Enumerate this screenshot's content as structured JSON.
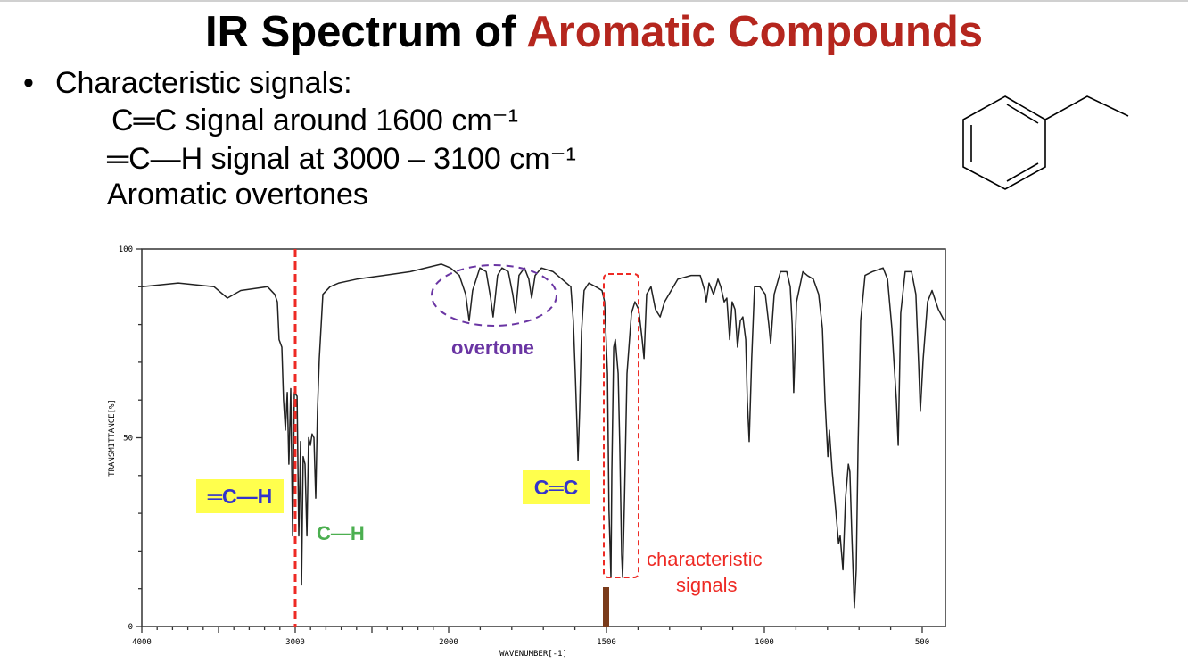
{
  "title": {
    "plain": "IR Spectrum of ",
    "accent": "Aromatic Compounds",
    "accent_color": "#b5261e"
  },
  "bullets": {
    "marker": "•",
    "heading": "Characteristic signals:",
    "lines": [
      "C═C signal around 1600 cm⁻¹",
      "═C—H signal at 3000 – 3100 cm⁻¹",
      "Aromatic overtones"
    ]
  },
  "molecule": {
    "icon": "ethylbenzene-structure"
  },
  "annotations": {
    "ch_aromatic": "═C—H",
    "ch_alkyl": "C—H",
    "cc": "C═C",
    "overtone": "overtone",
    "characteristic": [
      "characteristic",
      "signals"
    ],
    "colors": {
      "highlight": "#ffff4d",
      "blue_text": "#3333cc",
      "green": "#4caf50",
      "purple": "#6a35a3",
      "red": "#ee2a24",
      "brown": "#7a3b1a"
    }
  },
  "chart_data": {
    "type": "line",
    "xlabel": "WAVENUMBER[-1]",
    "ylabel": "TRANSMITTANCE[%]",
    "xlim": [
      4000,
      430
    ],
    "x_scale_break": 2000,
    "ylim": [
      0,
      100
    ],
    "x_ticks": [
      "4000",
      "3000",
      "2000",
      "1500",
      "1000",
      "500"
    ],
    "y_ticks": [
      "0",
      "50",
      "100"
    ],
    "grid": false,
    "marker_lines": [
      3000
    ],
    "marker_bar": 1500,
    "points": [
      [
        4000,
        90
      ],
      [
        3762,
        91
      ],
      [
        3529,
        90
      ],
      [
        3442,
        87
      ],
      [
        3355,
        89
      ],
      [
        3180,
        90
      ],
      [
        3134,
        88
      ],
      [
        3116,
        86
      ],
      [
        3105,
        76
      ],
      [
        3087,
        74
      ],
      [
        3076,
        60
      ],
      [
        3064,
        52
      ],
      [
        3052,
        62
      ],
      [
        3041,
        43
      ],
      [
        3029,
        63
      ],
      [
        3017,
        24
      ],
      [
        3006,
        62
      ],
      [
        2988,
        61
      ],
      [
        2977,
        24
      ],
      [
        2965,
        49
      ],
      [
        2959,
        11
      ],
      [
        2948,
        45
      ],
      [
        2936,
        43
      ],
      [
        2924,
        24
      ],
      [
        2913,
        50
      ],
      [
        2901,
        48
      ],
      [
        2890,
        51
      ],
      [
        2878,
        50
      ],
      [
        2866,
        34
      ],
      [
        2855,
        57
      ],
      [
        2843,
        71
      ],
      [
        2820,
        88
      ],
      [
        2773,
        90
      ],
      [
        2715,
        91
      ],
      [
        2599,
        92
      ],
      [
        2424,
        93
      ],
      [
        2250,
        94
      ],
      [
        2047,
        96
      ],
      [
        1994,
        95
      ],
      [
        1966,
        93
      ],
      [
        1946,
        88
      ],
      [
        1935,
        81
      ],
      [
        1924,
        89
      ],
      [
        1901,
        95
      ],
      [
        1881,
        94
      ],
      [
        1867,
        87
      ],
      [
        1859,
        82
      ],
      [
        1845,
        93
      ],
      [
        1831,
        95
      ],
      [
        1811,
        94
      ],
      [
        1797,
        88
      ],
      [
        1788,
        83
      ],
      [
        1777,
        93
      ],
      [
        1760,
        95
      ],
      [
        1746,
        92
      ],
      [
        1737,
        87
      ],
      [
        1726,
        93
      ],
      [
        1706,
        95
      ],
      [
        1669,
        94
      ],
      [
        1641,
        92
      ],
      [
        1613,
        90
      ],
      [
        1605,
        81
      ],
      [
        1599,
        67
      ],
      [
        1593,
        52
      ],
      [
        1590,
        44
      ],
      [
        1585,
        57
      ],
      [
        1579,
        78
      ],
      [
        1571,
        89
      ],
      [
        1556,
        91
      ],
      [
        1534,
        90
      ],
      [
        1514,
        89
      ],
      [
        1506,
        86
      ],
      [
        1497,
        67
      ],
      [
        1492,
        31
      ],
      [
        1486,
        13
      ],
      [
        1483,
        41
      ],
      [
        1477,
        74
      ],
      [
        1472,
        76
      ],
      [
        1463,
        67
      ],
      [
        1458,
        48
      ],
      [
        1452,
        19
      ],
      [
        1449,
        13
      ],
      [
        1443,
        34
      ],
      [
        1435,
        67
      ],
      [
        1421,
        83
      ],
      [
        1410,
        86
      ],
      [
        1398,
        84
      ],
      [
        1387,
        76
      ],
      [
        1381,
        71
      ],
      [
        1373,
        88
      ],
      [
        1359,
        90
      ],
      [
        1345,
        84
      ],
      [
        1330,
        82
      ],
      [
        1316,
        86
      ],
      [
        1274,
        92
      ],
      [
        1232,
        93
      ],
      [
        1203,
        93
      ],
      [
        1189,
        89
      ],
      [
        1184,
        86
      ],
      [
        1175,
        91
      ],
      [
        1161,
        88
      ],
      [
        1147,
        92
      ],
      [
        1138,
        90
      ],
      [
        1127,
        86
      ],
      [
        1119,
        87
      ],
      [
        1110,
        76
      ],
      [
        1102,
        86
      ],
      [
        1093,
        84
      ],
      [
        1085,
        74
      ],
      [
        1076,
        81
      ],
      [
        1068,
        82
      ],
      [
        1059,
        76
      ],
      [
        1054,
        60
      ],
      [
        1048,
        49
      ],
      [
        1040,
        71
      ],
      [
        1031,
        90
      ],
      [
        1014,
        90
      ],
      [
        997,
        88
      ],
      [
        986,
        80
      ],
      [
        980,
        75
      ],
      [
        969,
        88
      ],
      [
        949,
        94
      ],
      [
        929,
        94
      ],
      [
        918,
        90
      ],
      [
        912,
        80
      ],
      [
        907,
        62
      ],
      [
        898,
        86
      ],
      [
        878,
        94
      ],
      [
        864,
        93
      ],
      [
        845,
        92
      ],
      [
        828,
        88
      ],
      [
        816,
        79
      ],
      [
        808,
        60
      ],
      [
        799,
        45
      ],
      [
        794,
        52
      ],
      [
        785,
        41
      ],
      [
        774,
        31
      ],
      [
        765,
        22
      ],
      [
        760,
        24
      ],
      [
        751,
        15
      ],
      [
        743,
        34
      ],
      [
        734,
        43
      ],
      [
        729,
        41
      ],
      [
        723,
        24
      ],
      [
        715,
        5
      ],
      [
        709,
        15
      ],
      [
        703,
        48
      ],
      [
        695,
        81
      ],
      [
        681,
        93
      ],
      [
        658,
        94
      ],
      [
        624,
        95
      ],
      [
        610,
        92
      ],
      [
        596,
        79
      ],
      [
        582,
        60
      ],
      [
        576,
        48
      ],
      [
        568,
        83
      ],
      [
        554,
        94
      ],
      [
        534,
        94
      ],
      [
        520,
        88
      ],
      [
        511,
        69
      ],
      [
        506,
        57
      ],
      [
        497,
        71
      ],
      [
        483,
        86
      ],
      [
        469,
        89
      ],
      [
        449,
        84
      ],
      [
        430,
        81
      ]
    ]
  }
}
